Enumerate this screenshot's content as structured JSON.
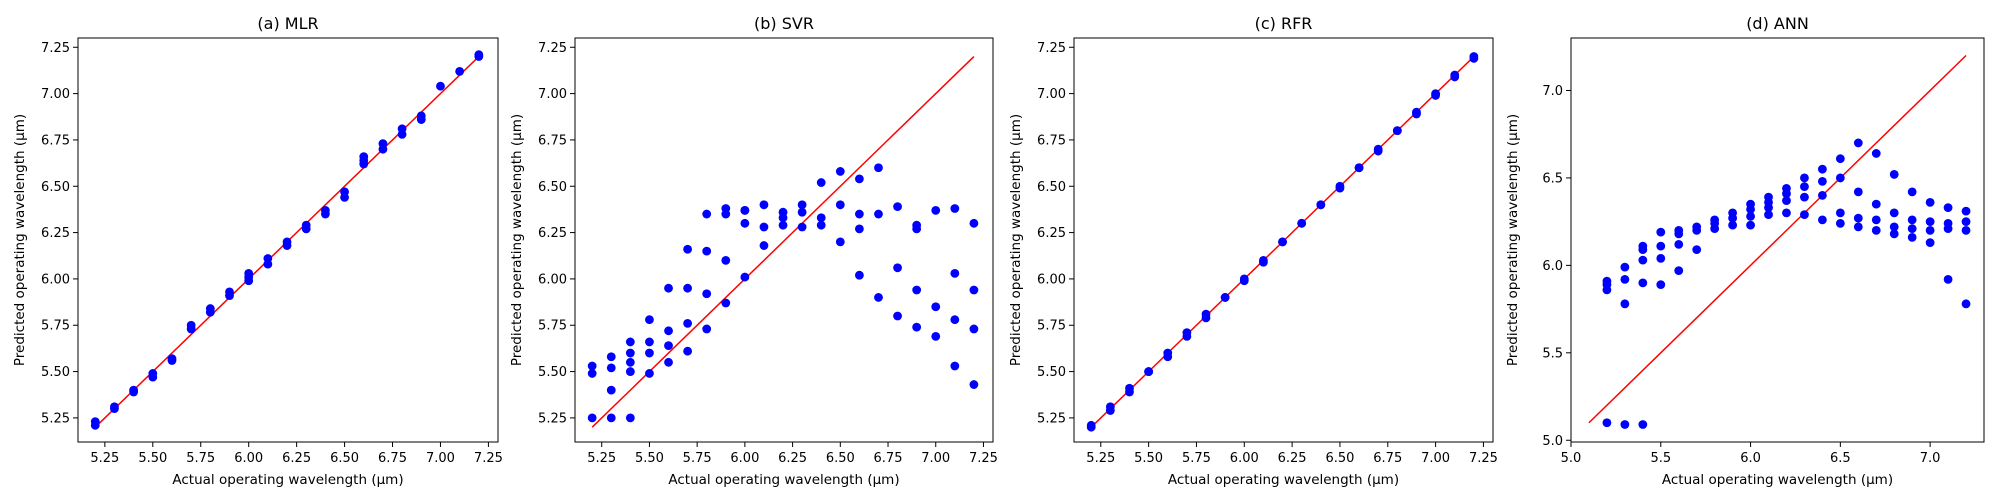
{
  "chart_data": [
    {
      "type": "scatter",
      "title": "(a) MLR",
      "xlabel": "Actual operating wavelength (µm)",
      "ylabel": "Predicted operating wavelength (µm)",
      "xlim": [
        5.11,
        7.3
      ],
      "ylim": [
        5.12,
        7.3
      ],
      "xticks": [
        "5.25",
        "5.50",
        "5.75",
        "6.00",
        "6.25",
        "6.50",
        "6.75",
        "7.00",
        "7.25"
      ],
      "yticks": [
        "5.25",
        "5.50",
        "5.75",
        "6.00",
        "6.25",
        "6.50",
        "6.75",
        "7.00",
        "7.25"
      ],
      "reference_line": {
        "x": [
          5.2,
          7.2
        ],
        "y": [
          5.2,
          7.2
        ],
        "color": "#ff0000"
      },
      "point_color": "#0000ff",
      "x": [
        5.2,
        5.2,
        5.3,
        5.3,
        5.4,
        5.4,
        5.5,
        5.5,
        5.6,
        5.6,
        5.7,
        5.7,
        5.8,
        5.8,
        5.9,
        5.9,
        6.0,
        6.0,
        6.0,
        6.1,
        6.1,
        6.2,
        6.2,
        6.3,
        6.3,
        6.4,
        6.4,
        6.5,
        6.5,
        6.6,
        6.6,
        6.6,
        6.7,
        6.7,
        6.8,
        6.8,
        6.9,
        6.9,
        7.0,
        7.1,
        7.2,
        7.2
      ],
      "y": [
        5.21,
        5.23,
        5.3,
        5.31,
        5.39,
        5.4,
        5.47,
        5.49,
        5.56,
        5.57,
        5.73,
        5.75,
        5.82,
        5.84,
        5.91,
        5.93,
        5.99,
        6.01,
        6.03,
        6.08,
        6.11,
        6.18,
        6.2,
        6.27,
        6.29,
        6.35,
        6.37,
        6.44,
        6.47,
        6.62,
        6.64,
        6.66,
        6.7,
        6.73,
        6.78,
        6.81,
        6.86,
        6.88,
        7.04,
        7.12,
        7.2,
        7.21
      ]
    },
    {
      "type": "scatter",
      "title": "(b) SVR",
      "xlabel": "Actual operating wavelength (µm)",
      "ylabel": "Predicted operating wavelength (µm)",
      "xlim": [
        5.11,
        7.3
      ],
      "ylim": [
        5.12,
        7.3
      ],
      "xticks": [
        "5.25",
        "5.50",
        "5.75",
        "6.00",
        "6.25",
        "6.50",
        "6.75",
        "7.00",
        "7.25"
      ],
      "yticks": [
        "5.25",
        "5.50",
        "5.75",
        "6.00",
        "6.25",
        "6.50",
        "6.75",
        "7.00",
        "7.25"
      ],
      "reference_line": {
        "x": [
          5.2,
          7.2
        ],
        "y": [
          5.2,
          7.2
        ],
        "color": "#ff0000"
      },
      "point_color": "#0000ff",
      "x": [
        5.2,
        5.2,
        5.2,
        5.3,
        5.3,
        5.3,
        5.3,
        5.4,
        5.4,
        5.4,
        5.4,
        5.4,
        5.5,
        5.5,
        5.5,
        5.5,
        5.6,
        5.6,
        5.6,
        5.6,
        5.7,
        5.7,
        5.7,
        5.7,
        5.8,
        5.8,
        5.8,
        5.8,
        5.9,
        5.9,
        5.9,
        5.9,
        6.0,
        6.0,
        6.0,
        6.0,
        6.1,
        6.1,
        6.1,
        6.2,
        6.2,
        6.2,
        6.3,
        6.3,
        6.3,
        6.4,
        6.4,
        6.4,
        6.5,
        6.5,
        6.5,
        6.6,
        6.6,
        6.6,
        6.6,
        6.7,
        6.7,
        6.7,
        6.8,
        6.8,
        6.8,
        6.9,
        6.9,
        6.9,
        6.9,
        7.0,
        7.0,
        7.0,
        7.1,
        7.1,
        7.1,
        7.1,
        7.2,
        7.2,
        7.2,
        7.2
      ],
      "y": [
        5.25,
        5.49,
        5.53,
        5.25,
        5.4,
        5.52,
        5.58,
        5.25,
        5.5,
        5.55,
        5.6,
        5.66,
        5.49,
        5.6,
        5.66,
        5.78,
        5.55,
        5.64,
        5.72,
        5.95,
        5.61,
        5.76,
        5.95,
        6.16,
        5.73,
        5.92,
        6.15,
        6.35,
        5.87,
        6.1,
        6.35,
        6.38,
        6.01,
        6.3,
        6.37,
        6.37,
        6.18,
        6.28,
        6.4,
        6.29,
        6.33,
        6.36,
        6.28,
        6.36,
        6.4,
        6.29,
        6.33,
        6.52,
        6.2,
        6.4,
        6.58,
        6.02,
        6.27,
        6.35,
        6.54,
        5.9,
        6.35,
        6.6,
        5.8,
        6.06,
        6.39,
        5.74,
        5.94,
        6.27,
        6.29,
        5.69,
        5.85,
        6.37,
        5.53,
        5.78,
        6.03,
        6.38,
        5.43,
        5.73,
        5.94,
        6.3
      ]
    },
    {
      "type": "scatter",
      "title": "(c) RFR",
      "xlabel": "Actual operating wavelength (µm)",
      "ylabel": "Predicted operating wavelength (µm)",
      "xlim": [
        5.11,
        7.3
      ],
      "ylim": [
        5.12,
        7.3
      ],
      "xticks": [
        "5.25",
        "5.50",
        "5.75",
        "6.00",
        "6.25",
        "6.50",
        "6.75",
        "7.00",
        "7.25"
      ],
      "yticks": [
        "5.25",
        "5.50",
        "5.75",
        "6.00",
        "6.25",
        "6.50",
        "6.75",
        "7.00",
        "7.25"
      ],
      "reference_line": {
        "x": [
          5.2,
          7.2
        ],
        "y": [
          5.2,
          7.2
        ],
        "color": "#ff0000"
      },
      "point_color": "#0000ff",
      "x": [
        5.2,
        5.2,
        5.3,
        5.3,
        5.4,
        5.4,
        5.5,
        5.5,
        5.6,
        5.6,
        5.7,
        5.7,
        5.8,
        5.8,
        5.9,
        5.9,
        6.0,
        6.0,
        6.1,
        6.1,
        6.2,
        6.2,
        6.3,
        6.3,
        6.4,
        6.4,
        6.5,
        6.5,
        6.6,
        6.6,
        6.7,
        6.7,
        6.8,
        6.8,
        6.9,
        6.9,
        7.0,
        7.0,
        7.1,
        7.1,
        7.2,
        7.2
      ],
      "y": [
        5.2,
        5.21,
        5.29,
        5.31,
        5.39,
        5.41,
        5.5,
        5.5,
        5.58,
        5.6,
        5.69,
        5.71,
        5.79,
        5.81,
        5.9,
        5.9,
        5.99,
        6.0,
        6.09,
        6.1,
        6.2,
        6.2,
        6.3,
        6.3,
        6.4,
        6.4,
        6.49,
        6.5,
        6.6,
        6.6,
        6.69,
        6.7,
        6.8,
        6.8,
        6.89,
        6.9,
        6.99,
        7.0,
        7.09,
        7.1,
        7.19,
        7.2
      ]
    },
    {
      "type": "scatter",
      "title": "(d) ANN",
      "xlabel": "Actual operating wavelength (µm)",
      "ylabel": "Predicted operating wavelength (µm)",
      "xlim": [
        5.0,
        7.3
      ],
      "ylim": [
        4.99,
        7.3
      ],
      "xticks": [
        "5.0",
        "5.5",
        "6.0",
        "6.5",
        "7.0"
      ],
      "yticks": [
        "5.0",
        "5.5",
        "6.0",
        "6.5",
        "7.0"
      ],
      "reference_line": {
        "x": [
          5.1,
          7.2
        ],
        "y": [
          5.1,
          7.2
        ],
        "color": "#ff0000"
      },
      "point_color": "#0000ff",
      "x": [
        5.2,
        5.2,
        5.2,
        5.2,
        5.3,
        5.3,
        5.3,
        5.3,
        5.4,
        5.4,
        5.4,
        5.4,
        5.4,
        5.5,
        5.5,
        5.5,
        5.5,
        5.6,
        5.6,
        5.6,
        5.6,
        5.7,
        5.7,
        5.7,
        5.8,
        5.8,
        5.8,
        5.9,
        5.9,
        5.9,
        6.0,
        6.0,
        6.0,
        6.0,
        6.1,
        6.1,
        6.1,
        6.1,
        6.2,
        6.2,
        6.2,
        6.2,
        6.3,
        6.3,
        6.3,
        6.3,
        6.4,
        6.4,
        6.4,
        6.4,
        6.5,
        6.5,
        6.5,
        6.5,
        6.6,
        6.6,
        6.6,
        6.6,
        6.7,
        6.7,
        6.7,
        6.7,
        6.8,
        6.8,
        6.8,
        6.8,
        6.9,
        6.9,
        6.9,
        6.9,
        7.0,
        7.0,
        7.0,
        7.0,
        7.1,
        7.1,
        7.1,
        7.1,
        7.2,
        7.2,
        7.2,
        7.2
      ],
      "y": [
        5.1,
        5.86,
        5.89,
        5.91,
        5.09,
        5.78,
        5.92,
        5.99,
        5.09,
        5.9,
        6.03,
        6.09,
        6.11,
        5.89,
        6.04,
        6.11,
        6.19,
        5.97,
        6.12,
        6.18,
        6.2,
        6.09,
        6.2,
        6.22,
        6.21,
        6.24,
        6.26,
        6.23,
        6.27,
        6.3,
        6.23,
        6.28,
        6.32,
        6.35,
        6.29,
        6.33,
        6.36,
        6.39,
        6.3,
        6.37,
        6.41,
        6.44,
        6.29,
        6.39,
        6.45,
        6.5,
        6.26,
        6.4,
        6.48,
        6.55,
        6.24,
        6.3,
        6.5,
        6.61,
        6.22,
        6.27,
        6.42,
        6.7,
        6.2,
        6.26,
        6.35,
        6.64,
        6.18,
        6.22,
        6.3,
        6.52,
        6.16,
        6.21,
        6.26,
        6.42,
        6.13,
        6.2,
        6.25,
        6.36,
        5.92,
        6.21,
        6.24,
        6.33,
        5.78,
        6.2,
        6.25,
        6.31
      ]
    }
  ]
}
